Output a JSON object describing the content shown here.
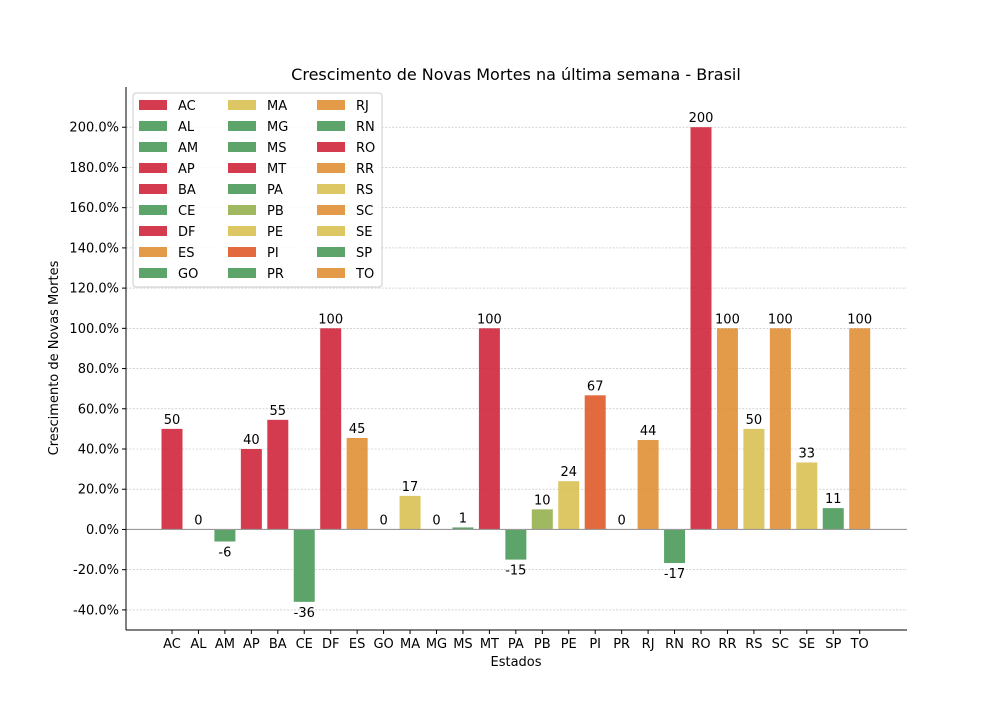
{
  "chart_data": {
    "type": "bar",
    "title": "Crescimento de Novas Mortes na última semana - Brasil",
    "xlabel": "Estados",
    "ylabel": "Crescimento de Novas Mortes",
    "ylim": [
      -50,
      220
    ],
    "yticks": [
      -40,
      -20,
      0,
      20,
      40,
      60,
      80,
      100,
      120,
      140,
      160,
      180,
      200
    ],
    "ytick_labels": [
      "-40.0%",
      "-20.0%",
      "0.0%",
      "20.0%",
      "40.0%",
      "60.0%",
      "80.0%",
      "100.0%",
      "120.0%",
      "140.0%",
      "160.0%",
      "180.0%",
      "200.0%"
    ],
    "grid": "horizontal",
    "legend_position": "top-left",
    "categories": [
      "AC",
      "AL",
      "AM",
      "AP",
      "BA",
      "CE",
      "DF",
      "ES",
      "GO",
      "MA",
      "MG",
      "MS",
      "MT",
      "PA",
      "PB",
      "PE",
      "PI",
      "PR",
      "RJ",
      "RN",
      "RO",
      "RR",
      "RS",
      "SC",
      "SE",
      "SP",
      "TO"
    ],
    "values": [
      50,
      0,
      -6,
      40,
      54.5,
      -36,
      100,
      45.5,
      0,
      16.7,
      0,
      1,
      100,
      -15,
      10,
      24,
      66.7,
      0,
      44.5,
      -16.7,
      200,
      100,
      50,
      100,
      33.3,
      10.6,
      100
    ],
    "labels": [
      "50",
      "0",
      "-6",
      "40",
      "55",
      "-36",
      "100",
      "45",
      "0",
      "17",
      "0",
      "1",
      "100",
      "-15",
      "10",
      "24",
      "67",
      "0",
      "44",
      "-17",
      "200",
      "100",
      "50",
      "100",
      "33",
      "11",
      "100"
    ],
    "colors": [
      "#d0263b",
      "#4a9a5a",
      "#4a9a5a",
      "#d0263b",
      "#d0263b",
      "#4a9a5a",
      "#d0263b",
      "#e08f35",
      "#4a9a5a",
      "#d8c153",
      "#4a9a5a",
      "#4a9a5a",
      "#d0263b",
      "#4a9a5a",
      "#96b04e",
      "#d8c153",
      "#e05a2a",
      "#4a9a5a",
      "#e08f35",
      "#4a9a5a",
      "#d0263b",
      "#e08f35",
      "#d8c153",
      "#e08f35",
      "#d8c153",
      "#4a9a5a",
      "#e08f35"
    ]
  }
}
